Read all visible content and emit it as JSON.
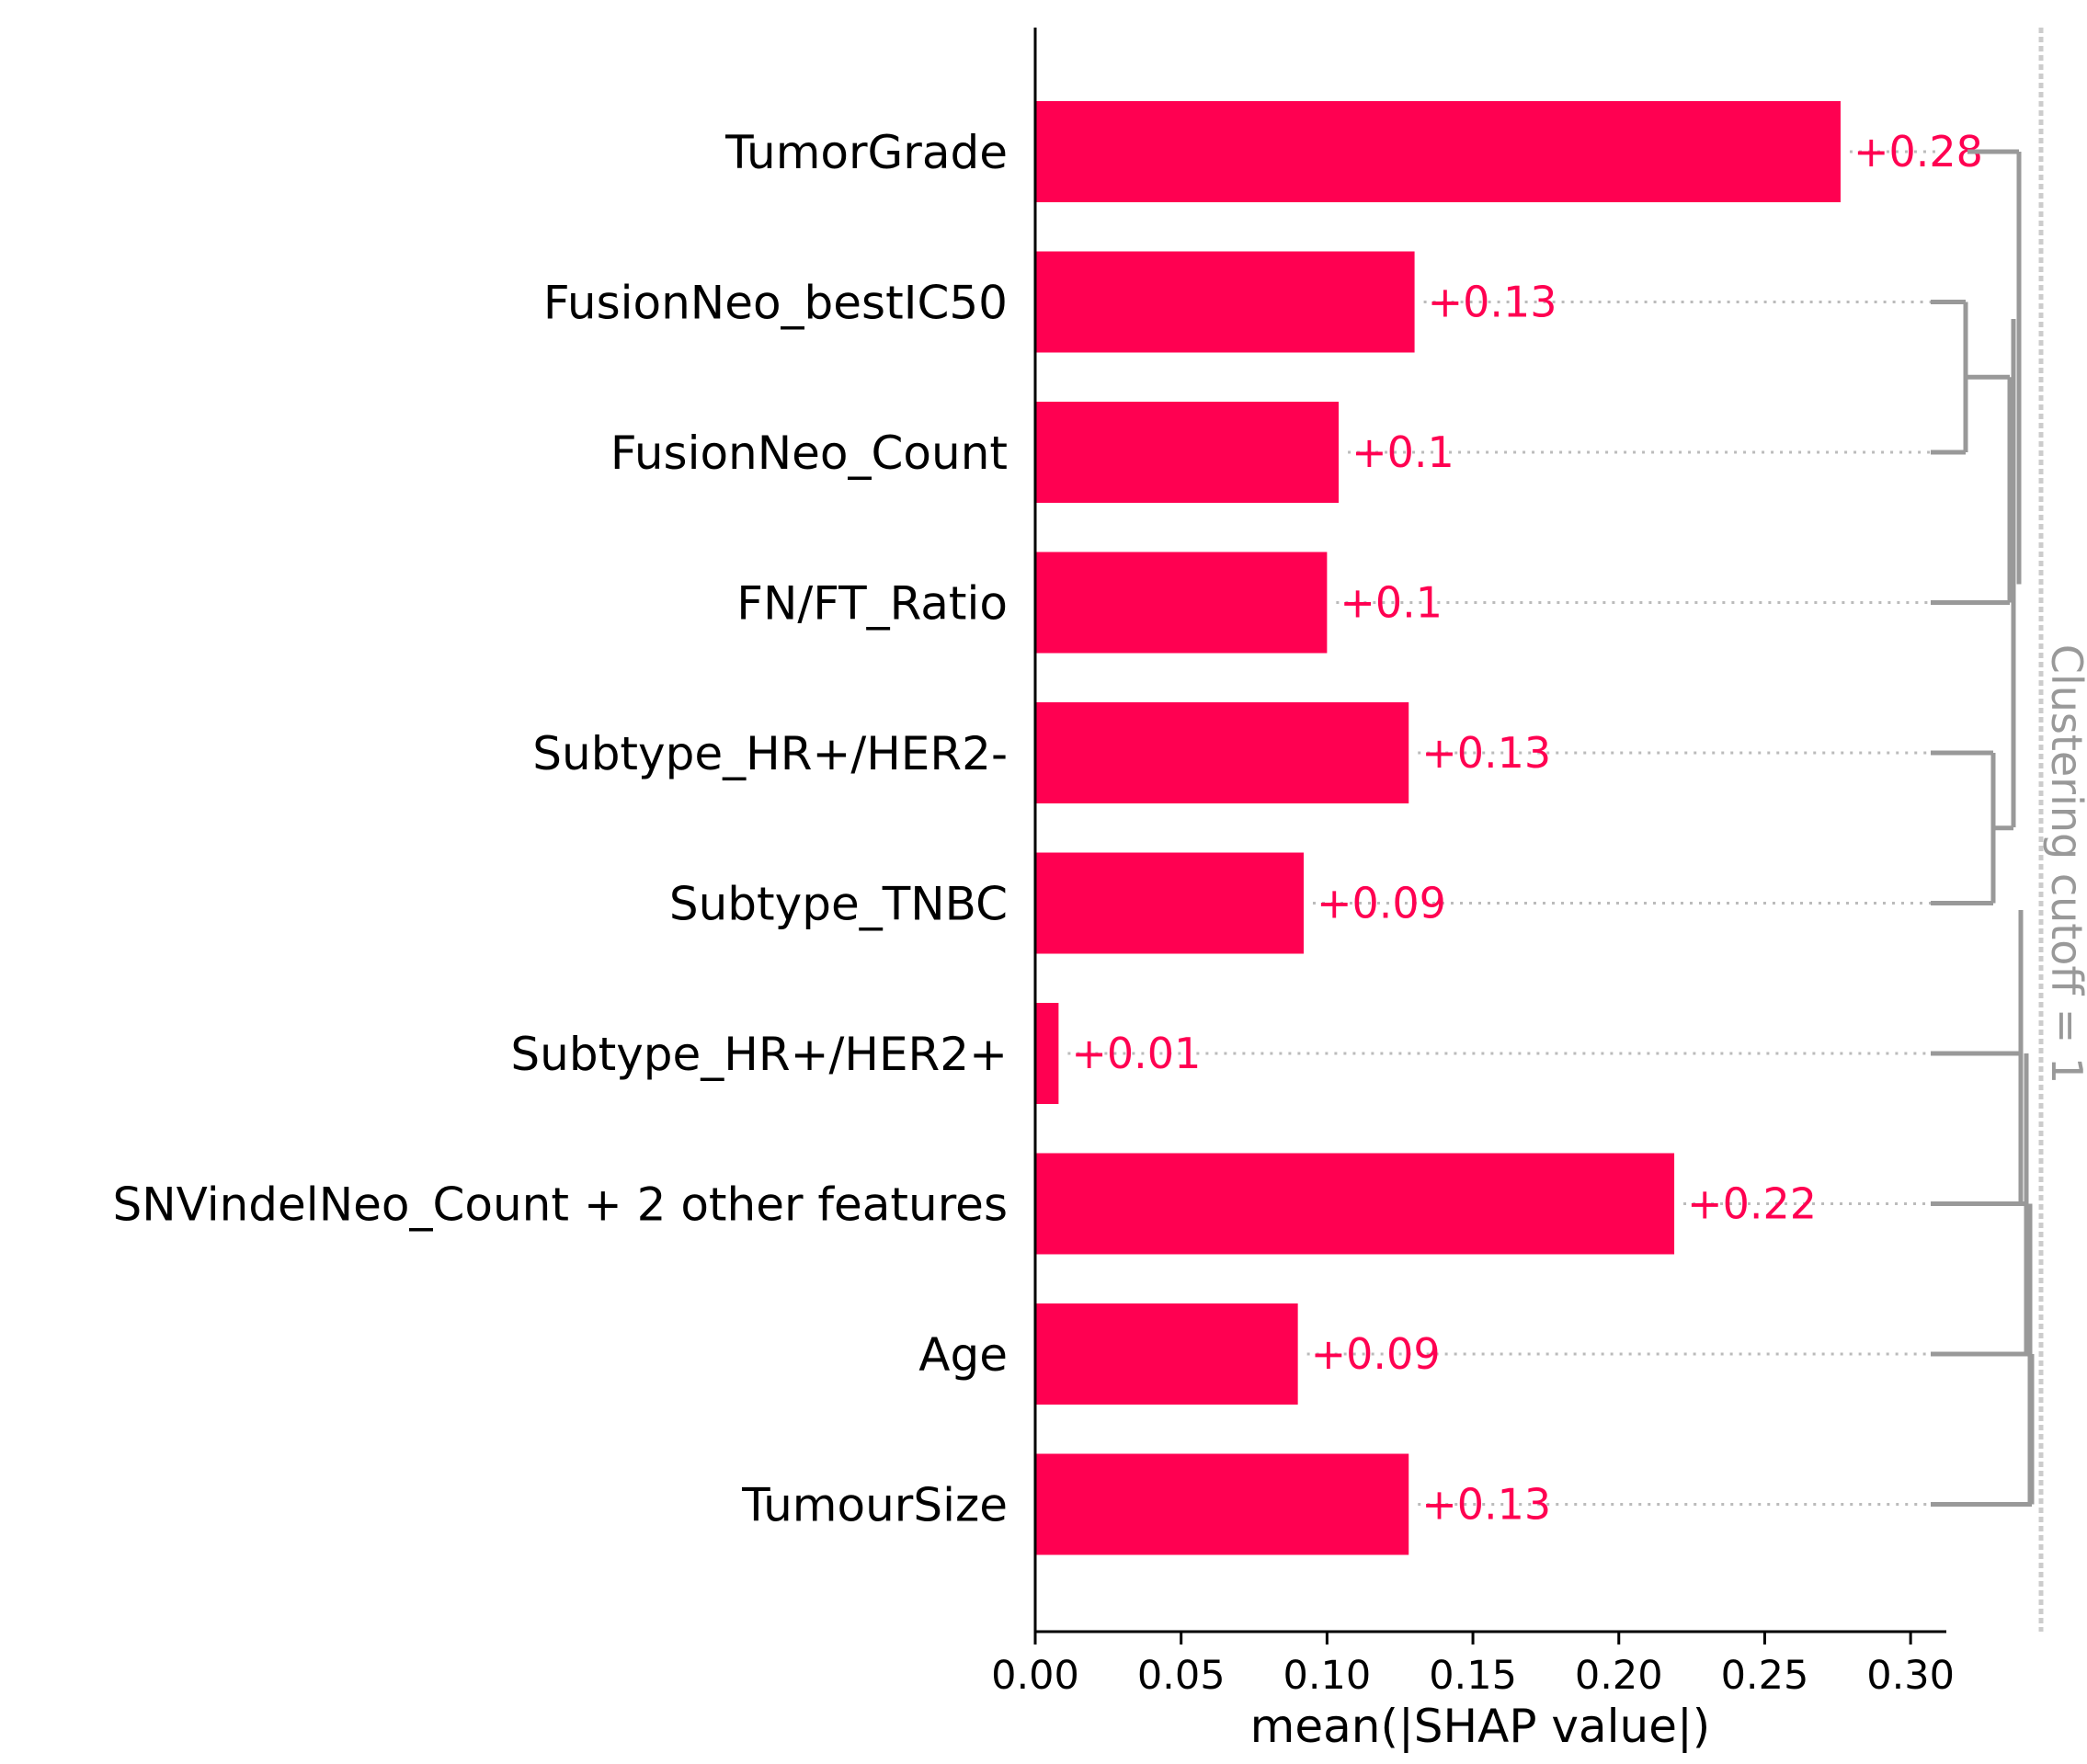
{
  "chart_data": {
    "type": "bar",
    "orientation": "horizontal",
    "title": "",
    "xlabel": "mean(|SHAP value|)",
    "ylabel": "",
    "xlim": [
      0,
      0.305
    ],
    "xticks": [
      "0.00",
      "0.05",
      "0.10",
      "0.15",
      "0.20",
      "0.25",
      "0.30"
    ],
    "xtick_values": [
      0,
      0.05,
      0.1,
      0.15,
      0.2,
      0.25,
      0.3
    ],
    "grid": false,
    "categories": [
      "TumorGrade",
      "FusionNeo_bestIC50",
      "FusionNeo_Count",
      "FN/FT_Ratio",
      "Subtype_HR+/HER2-",
      "Subtype_TNBC",
      "Subtype_HR+/HER2+",
      "SNVindelNeo_Count + 2 other features",
      "Age",
      "TumourSize"
    ],
    "values": [
      0.276,
      0.13,
      0.104,
      0.1,
      0.128,
      0.092,
      0.008,
      0.219,
      0.09,
      0.128
    ],
    "value_labels": [
      "+0.28",
      "+0.13",
      "+0.1",
      "+0.1",
      "+0.13",
      "+0.09",
      "+0.01",
      "+0.22",
      "+0.09",
      "+0.13"
    ],
    "clustering_cutoff_label": "Clustering cutoff = 1",
    "colors": {
      "bar": "#ff0051",
      "value_text": "#ff0051",
      "dendrogram": "#999999",
      "dotted_guide": "#bbbbbb",
      "cutoff_line": "#cccccc"
    }
  }
}
